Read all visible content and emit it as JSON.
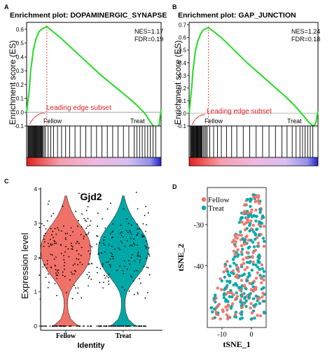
{
  "panels": [
    {
      "letter": "A"
    },
    {
      "letter": "B"
    },
    {
      "letter": "C"
    },
    {
      "letter": "D"
    }
  ],
  "chart_data": [
    {
      "type": "line",
      "panel": "A",
      "title": "Enrichment plot: DOPAMINERGIC_SYNAPSE",
      "ylabel": "Enrichment score (ES)",
      "ylim": [
        -0.1,
        0.65
      ],
      "yticks": [
        -0.1,
        0.0,
        0.1,
        0.2,
        0.3,
        0.4,
        0.5,
        0.6
      ],
      "ytick_labels": [
        "-0.1",
        "0.0",
        "0.1",
        "0.2",
        "0.3",
        "0.4",
        "0.5",
        "0.6"
      ],
      "stats": [
        "NES=1.17",
        "FDR=0.19"
      ],
      "leading_edge_label": "Leading edge subset",
      "group_labels": [
        "Fellow",
        "Treat"
      ],
      "peak_position": 0.15,
      "series": [
        {
          "x": [
            0,
            0.01,
            0.02,
            0.03,
            0.05,
            0.07,
            0.09,
            0.11,
            0.13,
            0.15,
            0.25,
            0.35,
            0.45,
            0.55,
            0.65,
            0.75,
            0.82,
            0.88,
            0.92,
            0.95,
            0.97,
            0.985,
            1.0
          ],
          "values": [
            0.0,
            0.08,
            0.16,
            0.3,
            0.45,
            0.53,
            0.58,
            0.6,
            0.61,
            0.62,
            0.54,
            0.45,
            0.36,
            0.27,
            0.19,
            0.11,
            0.05,
            -0.01,
            -0.07,
            -0.11,
            -0.12,
            -0.09,
            0.02
          ]
        }
      ],
      "hits": [
        0.01,
        0.015,
        0.02,
        0.025,
        0.03,
        0.035,
        0.04,
        0.045,
        0.05,
        0.055,
        0.06,
        0.065,
        0.07,
        0.075,
        0.08,
        0.085,
        0.09,
        0.095,
        0.1,
        0.105,
        0.11,
        0.115,
        0.12,
        0.13,
        0.14,
        0.16,
        0.18,
        0.2,
        0.23,
        0.26,
        0.29,
        0.32,
        0.36,
        0.4,
        0.44,
        0.48,
        0.52,
        0.56,
        0.6,
        0.64,
        0.68,
        0.72,
        0.76,
        0.8,
        0.82,
        0.84,
        0.86,
        0.88,
        0.9,
        0.92,
        0.94,
        0.96
      ]
    },
    {
      "type": "line",
      "panel": "B",
      "title": "Enrichment plot: GAP_JUNCTION",
      "ylabel": "Enrichment score (ES)",
      "ylim": [
        -0.1,
        0.72
      ],
      "yticks": [
        -0.1,
        0.0,
        0.1,
        0.2,
        0.3,
        0.4,
        0.5,
        0.6,
        0.7
      ],
      "ytick_labels": [
        "-0.1",
        "0.0",
        "0.1",
        "0.2",
        "0.3",
        "0.4",
        "0.5",
        "0.6",
        "0.7"
      ],
      "stats": [
        "NES=1.24",
        "FDR=0.18"
      ],
      "leading_edge_label": "Leading edge subset",
      "group_labels": [
        "Fellow",
        "Treat"
      ],
      "peak_position": 0.15,
      "series": [
        {
          "x": [
            0,
            0.01,
            0.02,
            0.03,
            0.05,
            0.07,
            0.09,
            0.11,
            0.13,
            0.15,
            0.25,
            0.35,
            0.45,
            0.55,
            0.65,
            0.75,
            0.82,
            0.88,
            0.92,
            0.95,
            0.97,
            0.985,
            1.0
          ],
          "values": [
            0.0,
            0.1,
            0.2,
            0.34,
            0.5,
            0.58,
            0.63,
            0.66,
            0.67,
            0.68,
            0.6,
            0.5,
            0.4,
            0.31,
            0.22,
            0.13,
            0.06,
            -0.01,
            -0.06,
            -0.09,
            -0.1,
            -0.07,
            0.02
          ]
        }
      ],
      "hits": [
        0.01,
        0.015,
        0.02,
        0.025,
        0.03,
        0.035,
        0.04,
        0.045,
        0.05,
        0.055,
        0.06,
        0.065,
        0.07,
        0.075,
        0.08,
        0.085,
        0.09,
        0.095,
        0.1,
        0.11,
        0.12,
        0.13,
        0.14,
        0.16,
        0.19,
        0.22,
        0.25,
        0.29,
        0.33,
        0.37,
        0.42,
        0.47,
        0.52,
        0.57,
        0.62,
        0.67,
        0.72,
        0.76,
        0.8,
        0.83,
        0.86,
        0.88,
        0.9,
        0.92,
        0.94,
        0.96
      ]
    },
    {
      "type": "violin",
      "panel": "C",
      "title": "Gjd2",
      "ylabel": "Expression level",
      "xlabel": "Identity",
      "categories": [
        "Fellow",
        "Treat"
      ],
      "colors": [
        "#f07167",
        "#00a7a7"
      ],
      "ylim": [
        0,
        4
      ],
      "yticks": [
        0,
        1,
        2,
        3,
        4
      ],
      "ytick_labels": [
        "0",
        "1",
        "2",
        "3",
        "4"
      ],
      "density_profile": {
        "y": [
          0,
          0.05,
          0.2,
          0.4,
          0.6,
          0.8,
          1.0,
          1.2,
          1.4,
          1.6,
          1.8,
          2.0,
          2.2,
          2.4,
          2.6,
          2.8,
          3.0,
          3.2,
          3.4,
          3.6,
          3.8
        ],
        "width": [
          0.55,
          0.42,
          0.2,
          0.1,
          0.07,
          0.08,
          0.15,
          0.3,
          0.5,
          0.72,
          0.88,
          0.96,
          1.0,
          0.97,
          0.88,
          0.72,
          0.52,
          0.34,
          0.2,
          0.1,
          0.03
        ]
      }
    },
    {
      "type": "scatter",
      "panel": "D",
      "xlabel": "tSNE_1",
      "ylabel": "tSNE_2",
      "xticks": [
        -10,
        0
      ],
      "xtick_labels": [
        "-10",
        "0"
      ],
      "yticks": [
        -30,
        -40
      ],
      "ytick_labels": [
        "-30",
        "-40"
      ],
      "xlim": [
        -15,
        5
      ],
      "ylim": [
        -55,
        -21
      ],
      "legend": [
        {
          "name": "Fellow",
          "color": "#f07167"
        },
        {
          "name": "Treat",
          "color": "#00a7a7"
        }
      ],
      "legend_position": "top-left"
    }
  ]
}
